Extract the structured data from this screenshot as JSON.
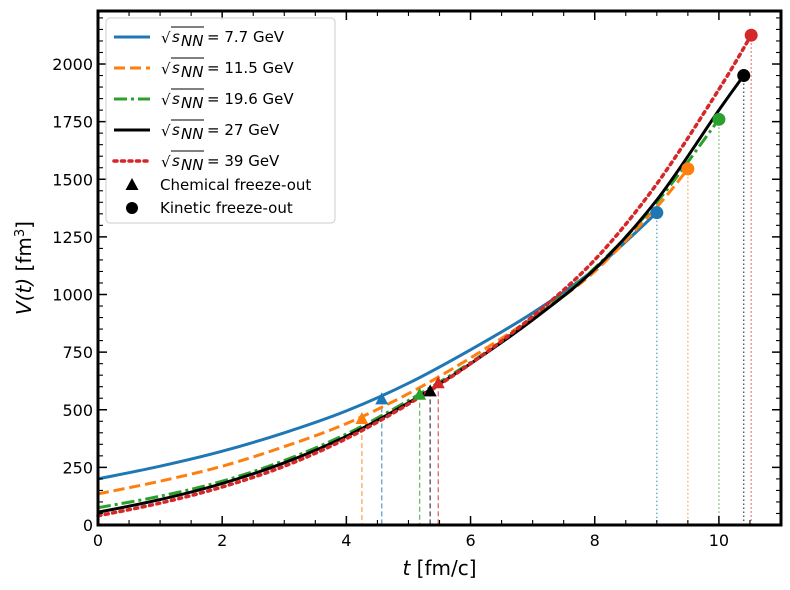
{
  "chart_data": {
    "type": "line",
    "xlabel_var": "t",
    "xlabel_unit": "[fm/c]",
    "ylabel_var": "V(t)",
    "ylabel_unit": "[fm",
    "ylabel_unit_exp": "3",
    "ylabel_unit_close": "]",
    "xlim": [
      0,
      11
    ],
    "ylim": [
      0,
      2230
    ],
    "xticks": [
      0,
      2,
      4,
      6,
      8,
      10
    ],
    "yticks": [
      0,
      250,
      500,
      750,
      1000,
      1250,
      1500,
      1750,
      2000
    ],
    "series": [
      {
        "name": "√sNN = 7.7 GeV",
        "prefix": "√",
        "sub": "s",
        "subsub": "NN",
        "label_value": "= 7.7 GeV",
        "color": "#1f77b4",
        "dash": "solid",
        "width": 3,
        "x": [
          0,
          1,
          2,
          3,
          4,
          5,
          6,
          7,
          8,
          9
        ],
        "y": [
          200,
          255,
          320,
          400,
          495,
          615,
          760,
          920,
          1110,
          1355
        ],
        "chemical": {
          "t": 4.57,
          "V": 545
        },
        "kinetic": {
          "t": 9.0,
          "V": 1355
        }
      },
      {
        "name": "√sNN = 11.5 GeV",
        "prefix": "√",
        "sub": "s",
        "subsub": "NN",
        "label_value": "= 11.5 GeV",
        "color": "#ff7f0e",
        "dash": "dashed",
        "width": 3,
        "x": [
          0,
          1,
          2,
          3,
          4,
          5,
          6,
          7,
          8,
          9,
          9.5
        ],
        "y": [
          135,
          190,
          255,
          340,
          440,
          570,
          725,
          900,
          1100,
          1380,
          1545
        ],
        "chemical": {
          "t": 4.25,
          "V": 460
        },
        "kinetic": {
          "t": 9.5,
          "V": 1545
        }
      },
      {
        "name": "√sNN = 19.6 GeV",
        "prefix": "√",
        "sub": "s",
        "subsub": "NN",
        "label_value": "= 19.6 GeV",
        "color": "#2ca02c",
        "dash": "dashdot",
        "width": 3,
        "x": [
          0,
          1,
          2,
          3,
          4,
          5,
          6,
          7,
          8,
          9,
          10
        ],
        "y": [
          75,
          125,
          190,
          280,
          395,
          540,
          705,
          895,
          1115,
          1400,
          1760
        ],
        "chemical": {
          "t": 5.18,
          "V": 565
        },
        "kinetic": {
          "t": 10.0,
          "V": 1760
        }
      },
      {
        "name": "√sNN = 27 GeV",
        "prefix": "√",
        "sub": "s",
        "subsub": "NN",
        "label_value": "= 27 GeV",
        "color": "#000000",
        "dash": "solid",
        "width": 3,
        "x": [
          0,
          1,
          2,
          3,
          4,
          5,
          6,
          7,
          8,
          9,
          10,
          10.4
        ],
        "y": [
          55,
          110,
          180,
          270,
          385,
          530,
          700,
          890,
          1110,
          1410,
          1800,
          1950
        ],
        "chemical": {
          "t": 5.35,
          "V": 580
        },
        "kinetic": {
          "t": 10.4,
          "V": 1950
        }
      },
      {
        "name": "√sNN = 39 GeV",
        "prefix": "√",
        "sub": "s",
        "subsub": "NN",
        "label_value": "= 39 GeV",
        "color": "#d62728",
        "dash": "dotted",
        "width": 3.5,
        "x": [
          0,
          1,
          2,
          3,
          4,
          5,
          6,
          7,
          8,
          9,
          10,
          10.52
        ],
        "y": [
          40,
          95,
          165,
          255,
          375,
          525,
          700,
          905,
          1150,
          1480,
          1890,
          2125
        ],
        "chemical": {
          "t": 5.48,
          "V": 615
        },
        "kinetic": {
          "t": 10.52,
          "V": 2125
        }
      }
    ],
    "legend_markers": [
      {
        "label": "Chemical freeze-out",
        "marker": "triangle"
      },
      {
        "label": "Kinetic freeze-out",
        "marker": "circle"
      }
    ],
    "legend_position": "upper-left"
  }
}
